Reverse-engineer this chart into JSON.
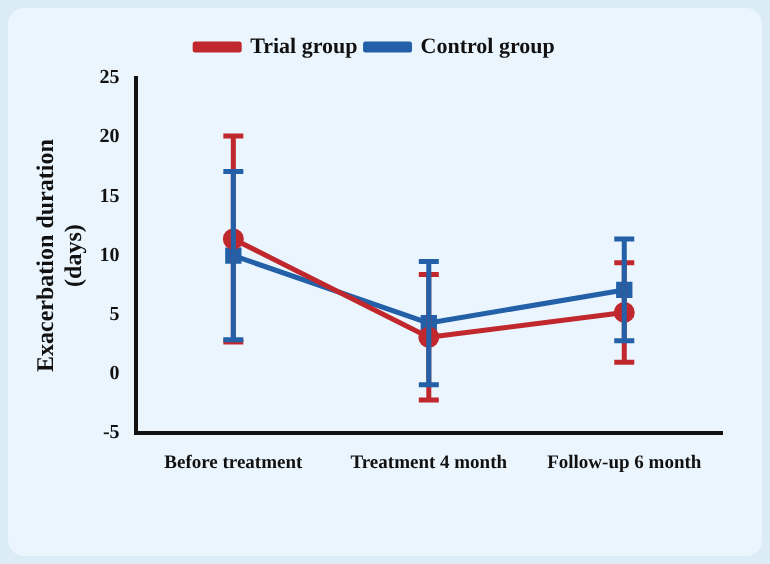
{
  "chart_data": {
    "type": "line",
    "ylabel": "Exacerbation duration (days)",
    "categories": [
      "Before treatment",
      "Treatment 4 month",
      "Follow-up 6 month"
    ],
    "series": [
      {
        "name": "Trial group",
        "color": "#c0282d",
        "values": [
          11.4,
          3.1,
          5.2
        ],
        "errors": [
          8.7,
          5.3,
          4.2
        ],
        "marker": "circle"
      },
      {
        "name": "Control group",
        "color": "#2360a8",
        "values": [
          10.0,
          4.3,
          7.1
        ],
        "errors": [
          7.1,
          5.2,
          4.3
        ],
        "marker": "square"
      }
    ],
    "ylim": [
      -5,
      25
    ],
    "yticks": [
      -5,
      0,
      5,
      10,
      15,
      20,
      25
    ],
    "grid": false,
    "legend": "top",
    "line_style": "solid"
  }
}
